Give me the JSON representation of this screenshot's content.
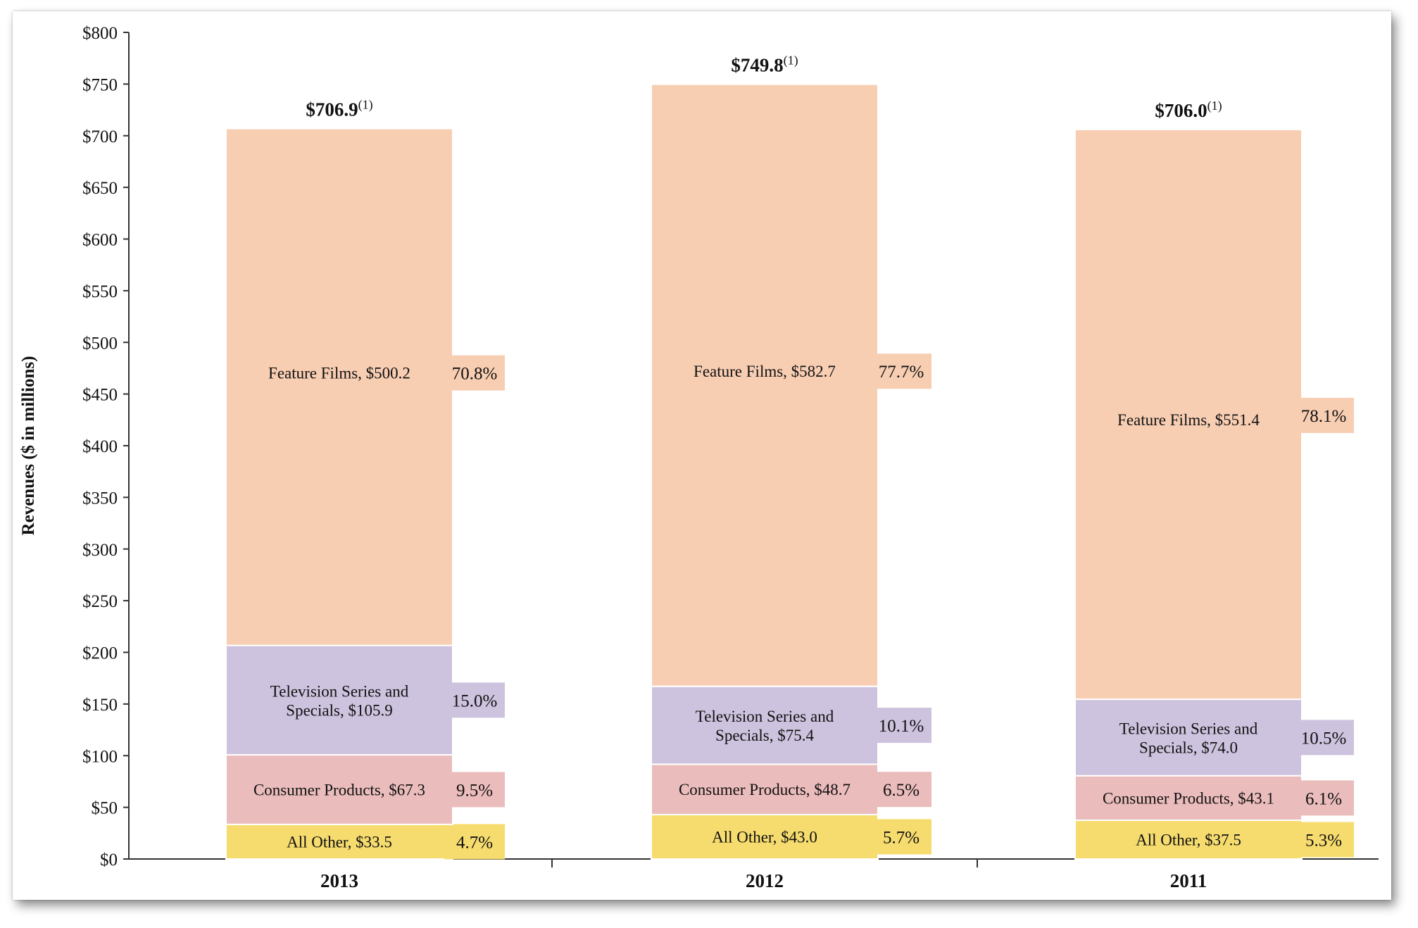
{
  "chart_data": {
    "type": "bar",
    "stacked": true,
    "ylabel": "Revenues ($ in millions)",
    "ylim": [
      0,
      800
    ],
    "yticks": [
      "$0",
      "$50",
      "$100",
      "$150",
      "$200",
      "$250",
      "$300",
      "$350",
      "$400",
      "$450",
      "$500",
      "$550",
      "$600",
      "$650",
      "$700",
      "$750",
      "$800"
    ],
    "categories": [
      "2013",
      "2012",
      "2011"
    ],
    "totals": [
      {
        "value": 706.9,
        "label": "$706.9",
        "note": "(1)"
      },
      {
        "value": 749.8,
        "label": "$749.8",
        "note": "(1)"
      },
      {
        "value": 706.0,
        "label": "$706.0",
        "note": "(1)"
      }
    ],
    "series": [
      {
        "key": "all-other",
        "color": "#f6dc6e",
        "values": [
          33.5,
          43.0,
          37.5
        ],
        "labels": [
          "All Other,  $33.5",
          "All Other,  $43.0",
          "All Other,  $37.5"
        ],
        "percents": [
          "4.7%",
          "5.7%",
          "5.3%"
        ]
      },
      {
        "key": "consumer-products",
        "color": "#ebbcbc",
        "values": [
          67.3,
          48.7,
          43.1
        ],
        "labels": [
          "Consumer Products,  $67.3",
          "Consumer Products,  $48.7",
          "Consumer Products,  $43.1"
        ],
        "percents": [
          "9.5%",
          "6.5%",
          "6.1%"
        ]
      },
      {
        "key": "television-series",
        "color": "#cdc3de",
        "values": [
          105.9,
          75.4,
          74.0
        ],
        "labels": [
          [
            "Television Series and",
            "Specials,  $105.9"
          ],
          [
            "Television Series and",
            "Specials,  $75.4"
          ],
          [
            "Television Series and",
            "Specials,  $74.0"
          ]
        ],
        "percents": [
          "15.0%",
          "10.1%",
          "10.5%"
        ]
      },
      {
        "key": "feature-films",
        "color": "#f8ceb3",
        "values": [
          500.2,
          582.7,
          551.4
        ],
        "labels": [
          "Feature Films,  $500.2",
          "Feature Films,  $582.7",
          "Feature Films,  $551.4"
        ],
        "percents": [
          "70.8%",
          "77.7%",
          "78.1%"
        ]
      }
    ],
    "grid": false,
    "legend": "none"
  }
}
